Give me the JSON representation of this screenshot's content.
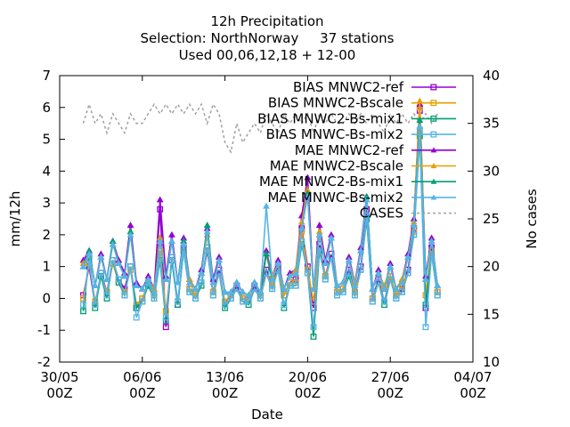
{
  "chart_data": {
    "type": "line",
    "title": [
      "12h Precipitation",
      "Selection: NorthNorway     37 stations",
      "Used 00,06,12,18 + 12-00"
    ],
    "xlabel": "Date",
    "ylabel": "mm/12h",
    "y2label": "No cases",
    "ylim": [
      -2,
      7
    ],
    "y2lim": [
      10,
      40
    ],
    "xlim": [
      "2024-05-30T00:00",
      "2024-07-04T00:00"
    ],
    "x_ticks": [
      "30/05\n00Z",
      "06/06\n00Z",
      "13/06\n00Z",
      "20/06\n00Z",
      "27/06\n00Z",
      "04/07\n00Z"
    ],
    "y_ticks": [
      "-2",
      "-1",
      "0",
      "1",
      "2",
      "3",
      "4",
      "5",
      "6",
      "7"
    ],
    "y2_ticks": [
      "10",
      "15",
      "20",
      "25",
      "30",
      "35",
      "40"
    ],
    "grid": false,
    "legend": "top-right",
    "x": [
      "06/01 00Z",
      "06/01 12Z",
      "06/02 00Z",
      "06/02 12Z",
      "06/03 00Z",
      "06/03 12Z",
      "06/04 00Z",
      "06/04 12Z",
      "06/05 00Z",
      "06/05 12Z",
      "06/06 00Z",
      "06/06 12Z",
      "06/07 00Z",
      "06/07 12Z",
      "06/08 00Z",
      "06/08 12Z",
      "06/09 00Z",
      "06/09 12Z",
      "06/10 00Z",
      "06/10 12Z",
      "06/11 00Z",
      "06/11 12Z",
      "06/12 00Z",
      "06/12 12Z",
      "06/13 00Z",
      "06/13 12Z",
      "06/14 00Z",
      "06/14 12Z",
      "06/15 00Z",
      "06/15 12Z",
      "06/16 00Z",
      "06/16 12Z",
      "06/17 00Z",
      "06/17 12Z",
      "06/18 00Z",
      "06/18 12Z",
      "06/19 00Z",
      "06/19 12Z",
      "06/20 00Z",
      "06/20 12Z",
      "06/21 00Z",
      "06/21 12Z",
      "06/22 00Z",
      "06/22 12Z",
      "06/23 00Z",
      "06/23 12Z",
      "06/24 00Z",
      "06/24 12Z",
      "06/25 00Z",
      "06/25 12Z",
      "06/26 00Z",
      "06/26 12Z",
      "06/27 00Z",
      "06/27 12Z",
      "06/28 00Z",
      "06/28 12Z",
      "06/29 00Z",
      "06/29 12Z",
      "06/30 00Z",
      "06/30 12Z",
      "07/01 00Z"
    ],
    "series": [
      {
        "name": "BIAS MNWC2-ref",
        "color": "#9400d3",
        "marker": "square",
        "axis": "y",
        "values": [
          0.1,
          1.0,
          -0.2,
          0.8,
          0.2,
          1.2,
          0.6,
          0.3,
          1.0,
          -0.3,
          0.0,
          0.4,
          0.1,
          2.8,
          -0.9,
          1.3,
          -0.2,
          1.6,
          0.3,
          0.1,
          0.5,
          1.5,
          0.2,
          0.9,
          -0.2,
          0.1,
          0.4,
          0.0,
          -0.1,
          0.4,
          0.1,
          0.9,
          0.4,
          1.0,
          0.1,
          0.5,
          0.6,
          2.2,
          1.0,
          -0.3,
          1.7,
          0.7,
          1.4,
          0.2,
          0.3,
          0.9,
          0.2,
          1.0,
          2.8,
          0.0,
          0.6,
          -0.1,
          0.7,
          0.1,
          0.3,
          0.9,
          2.2,
          5.9,
          -0.3,
          1.6,
          0.2
        ]
      },
      {
        "name": "BIAS MNWC2-Bscale",
        "color": "#e69f00",
        "marker": "square",
        "axis": "y",
        "values": [
          0.0,
          1.1,
          -0.1,
          0.7,
          0.2,
          1.1,
          0.5,
          0.2,
          0.9,
          -0.2,
          0.0,
          0.5,
          0.1,
          1.5,
          -0.4,
          1.2,
          -0.1,
          1.5,
          0.3,
          0.1,
          0.5,
          1.6,
          0.2,
          0.8,
          -0.1,
          0.1,
          0.3,
          0.0,
          0.0,
          0.3,
          0.1,
          0.8,
          0.4,
          0.9,
          0.1,
          0.5,
          0.5,
          2.1,
          0.9,
          -0.1,
          1.6,
          0.7,
          1.3,
          0.2,
          0.3,
          0.8,
          0.2,
          0.9,
          2.6,
          0.0,
          0.5,
          0.3,
          0.7,
          0.1,
          0.4,
          0.8,
          2.1,
          6.0,
          0.1,
          1.5,
          0.2
        ]
      },
      {
        "name": "BIAS MNWC2-Bs-mix1",
        "color": "#009e73",
        "marker": "square",
        "axis": "y",
        "values": [
          -0.4,
          1.3,
          -0.3,
          0.7,
          0.0,
          1.2,
          0.5,
          0.1,
          1.0,
          -0.3,
          -0.1,
          0.4,
          0.0,
          1.2,
          -0.7,
          1.2,
          -0.2,
          1.5,
          0.2,
          0.0,
          0.4,
          1.6,
          0.1,
          0.8,
          -0.3,
          0.0,
          0.3,
          -0.1,
          -0.2,
          0.3,
          0.0,
          0.8,
          0.3,
          0.9,
          -0.3,
          0.4,
          0.4,
          1.7,
          0.8,
          -1.2,
          1.5,
          0.6,
          1.3,
          0.1,
          0.2,
          0.7,
          0.1,
          0.9,
          2.5,
          -0.1,
          0.5,
          -0.2,
          0.6,
          0.0,
          0.2,
          0.8,
          2.0,
          5.1,
          -0.2,
          1.4,
          0.1
        ]
      },
      {
        "name": "BIAS MNWC-Bs-mix2",
        "color": "#56b4e9",
        "marker": "square",
        "axis": "y",
        "values": [
          -0.2,
          1.2,
          -0.2,
          0.8,
          0.1,
          1.2,
          0.6,
          0.1,
          1.0,
          -0.6,
          -0.1,
          0.5,
          0.0,
          1.3,
          -0.6,
          1.3,
          -0.1,
          1.5,
          0.2,
          0.0,
          0.5,
          1.6,
          0.1,
          0.8,
          -0.2,
          0.0,
          0.3,
          -0.1,
          -0.1,
          0.3,
          0.0,
          0.8,
          0.3,
          0.9,
          -0.2,
          0.4,
          0.4,
          1.8,
          0.8,
          -0.9,
          1.6,
          0.6,
          1.3,
          0.1,
          0.2,
          0.8,
          0.1,
          0.9,
          2.6,
          -0.1,
          0.5,
          -0.1,
          0.6,
          0.0,
          0.2,
          0.8,
          2.0,
          5.3,
          -0.9,
          1.4,
          0.1
        ]
      },
      {
        "name": "MAE MNWC2-ref",
        "color": "#9400d3",
        "marker": "triangle",
        "axis": "y",
        "values": [
          1.2,
          1.5,
          0.4,
          1.4,
          0.6,
          1.8,
          1.2,
          0.8,
          2.3,
          0.5,
          0.3,
          0.7,
          0.3,
          3.1,
          0.7,
          2.0,
          0.5,
          1.9,
          0.6,
          0.3,
          0.9,
          2.2,
          0.6,
          1.3,
          0.2,
          0.2,
          0.5,
          0.2,
          0.1,
          0.5,
          0.2,
          1.5,
          0.7,
          1.2,
          0.3,
          0.8,
          0.9,
          2.6,
          3.8,
          0.3,
          2.3,
          1.2,
          2.0,
          0.4,
          0.5,
          1.3,
          0.5,
          1.6,
          3.2,
          0.3,
          0.9,
          0.3,
          1.1,
          0.3,
          0.6,
          1.4,
          2.5,
          6.1,
          0.7,
          1.9,
          0.4
        ]
      },
      {
        "name": "MAE MNWC2-Bscale",
        "color": "#e69f00",
        "marker": "triangle",
        "axis": "y",
        "values": [
          1.1,
          1.4,
          0.4,
          1.3,
          0.6,
          1.7,
          1.1,
          0.7,
          2.1,
          0.4,
          0.3,
          0.6,
          0.3,
          1.9,
          0.6,
          1.8,
          0.5,
          1.8,
          0.6,
          0.3,
          0.8,
          2.0,
          0.5,
          1.2,
          0.2,
          0.2,
          0.5,
          0.2,
          0.1,
          0.5,
          0.2,
          1.4,
          0.7,
          1.1,
          0.3,
          0.7,
          0.9,
          2.4,
          3.4,
          0.3,
          2.1,
          1.1,
          1.9,
          0.4,
          0.5,
          1.2,
          0.5,
          1.5,
          3.1,
          0.3,
          0.8,
          0.4,
          1.0,
          0.3,
          0.6,
          1.3,
          2.4,
          6.2,
          0.6,
          1.8,
          0.4
        ]
      },
      {
        "name": "MAE MNWC2-Bs-mix1",
        "color": "#009e73",
        "marker": "triangle",
        "axis": "y",
        "values": [
          1.0,
          1.5,
          0.4,
          1.3,
          0.6,
          1.8,
          1.1,
          0.7,
          2.1,
          0.4,
          0.3,
          0.6,
          0.2,
          1.8,
          0.6,
          1.8,
          0.5,
          1.8,
          0.5,
          0.3,
          0.8,
          2.3,
          0.5,
          1.2,
          0.2,
          0.2,
          0.5,
          0.2,
          0.1,
          0.5,
          0.2,
          1.4,
          0.6,
          1.1,
          0.3,
          0.7,
          0.8,
          2.2,
          3.3,
          0.3,
          2.0,
          1.1,
          1.9,
          0.4,
          0.5,
          1.2,
          0.4,
          1.5,
          3.2,
          0.3,
          0.8,
          0.3,
          1.0,
          0.3,
          0.5,
          1.3,
          2.3,
          5.6,
          0.6,
          1.8,
          0.4
        ]
      },
      {
        "name": "MAE MNWC-Bs-mix2",
        "color": "#56b4e9",
        "marker": "triangle",
        "axis": "y",
        "values": [
          1.0,
          1.4,
          0.4,
          1.3,
          0.6,
          1.7,
          1.1,
          0.7,
          2.0,
          0.4,
          0.3,
          0.6,
          0.2,
          1.8,
          0.6,
          1.8,
          0.5,
          1.7,
          0.5,
          0.3,
          0.8,
          2.1,
          0.5,
          1.2,
          0.2,
          0.2,
          0.5,
          0.2,
          0.1,
          0.5,
          0.2,
          2.9,
          0.6,
          1.1,
          0.3,
          0.7,
          0.8,
          2.2,
          3.2,
          0.3,
          2.0,
          1.1,
          1.9,
          0.4,
          0.5,
          1.2,
          0.4,
          1.5,
          3.1,
          0.3,
          0.8,
          0.3,
          1.0,
          0.3,
          0.5,
          1.3,
          2.3,
          5.4,
          0.6,
          1.8,
          0.4
        ]
      },
      {
        "name": "CASES",
        "color": "#a0a0a0",
        "marker": "none",
        "dashed": true,
        "axis": "y2",
        "values": [
          35,
          37,
          35,
          36,
          34,
          36,
          35,
          34,
          36,
          35,
          35,
          36,
          37,
          36,
          37,
          36,
          37,
          36,
          37,
          36,
          37,
          35,
          37,
          36,
          33,
          32,
          35,
          33,
          34,
          35,
          34,
          36,
          35,
          34,
          36,
          35,
          36,
          35,
          36,
          34,
          36,
          35,
          36,
          35,
          35,
          36,
          35,
          36,
          35,
          36,
          35,
          34,
          36,
          35,
          36,
          35,
          36,
          35,
          36,
          35,
          36
        ]
      }
    ]
  }
}
